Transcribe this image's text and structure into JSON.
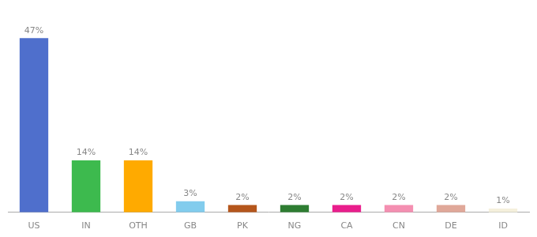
{
  "chart_data": {
    "type": "bar",
    "categories": [
      "US",
      "IN",
      "OTH",
      "GB",
      "PK",
      "NG",
      "CA",
      "CN",
      "DE",
      "ID"
    ],
    "values": [
      47,
      14,
      14,
      3,
      2,
      2,
      2,
      2,
      2,
      1
    ],
    "value_labels": [
      "47%",
      "14%",
      "14%",
      "3%",
      "2%",
      "2%",
      "2%",
      "2%",
      "2%",
      "1%"
    ],
    "colors": [
      "#4f6fcc",
      "#3dba4e",
      "#ffaa00",
      "#82cced",
      "#b5561c",
      "#2e7d32",
      "#e91e8c",
      "#f48fb1",
      "#e0a899",
      "#f5f0dc"
    ],
    "ylim": [
      0,
      53
    ],
    "grid": false,
    "data_labels": true,
    "tick_labels": "x"
  }
}
